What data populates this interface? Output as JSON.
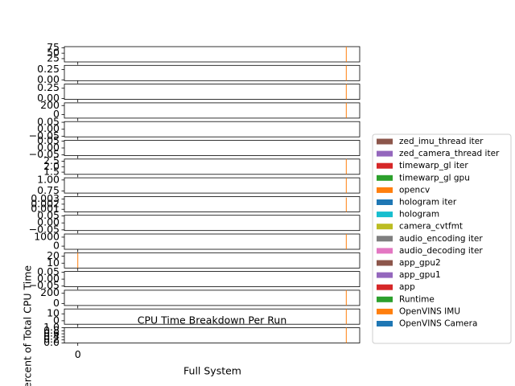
{
  "chart_data": [
    {
      "type": "bar",
      "x": [
        20
      ],
      "values": [
        80
      ],
      "color": "#ff7f0e",
      "ylim": [
        10,
        80
      ],
      "yticks": [
        25,
        50,
        75
      ]
    },
    {
      "type": "bar",
      "x": [
        20
      ],
      "values": [
        0.35
      ],
      "color": "#ff7f0e",
      "ylim": [
        -0.02,
        0.35
      ],
      "yticks": [
        {
          "value": 0,
          "label": "0.00"
        },
        0.25
      ]
    },
    {
      "type": "bar",
      "x": [
        20
      ],
      "values": [
        0.35
      ],
      "color": "#ff7f0e",
      "ylim": [
        -0.02,
        0.35
      ],
      "yticks": [
        {
          "value": 0,
          "label": "0.00"
        },
        0.25
      ]
    },
    {
      "type": "bar",
      "x": [
        20
      ],
      "values": [
        260
      ],
      "color": "#ff7f0e",
      "ylim": [
        -80,
        260
      ],
      "yticks": [
        0,
        200
      ]
    },
    {
      "type": "bar",
      "x": [],
      "values": [],
      "color": "#ff7f0e",
      "ylim": [
        -0.055,
        0.055
      ],
      "yticks": [
        {
          "value": -0.05,
          "label": "−0.05"
        },
        {
          "value": 0,
          "label": "0.00"
        },
        0.05
      ]
    },
    {
      "type": "bar",
      "x": [],
      "values": [],
      "color": "#ff7f0e",
      "ylim": [
        -0.055,
        0.055
      ],
      "yticks": [
        {
          "value": -0.05,
          "label": "−0.05"
        },
        {
          "value": 0,
          "label": "0.00"
        },
        0.05
      ]
    },
    {
      "type": "bar",
      "x": [
        20
      ],
      "values": [
        2.7
      ],
      "color": "#ff7f0e",
      "ylim": [
        1.3,
        2.7
      ],
      "yticks": [
        1.5,
        {
          "value": 2,
          "label": "2.0"
        },
        2.5
      ]
    },
    {
      "type": "bar",
      "x": [
        20
      ],
      "values": [
        1.05
      ],
      "color": "#ff7f0e",
      "ylim": [
        0.7,
        1.05
      ],
      "yticks": [
        0.75,
        {
          "value": 1,
          "label": "1.00"
        }
      ]
    },
    {
      "type": "bar",
      "x": [
        20
      ],
      "values": [
        0.0033
      ],
      "color": "#ff7f0e",
      "ylim": [
        0.0005,
        0.0035
      ],
      "yticks": [
        0.001,
        0.002,
        0.003
      ]
    },
    {
      "type": "bar",
      "x": [],
      "values": [],
      "color": "#ff7f0e",
      "ylim": [
        -0.055,
        0.055
      ],
      "yticks": [
        {
          "value": -0.05,
          "label": "−0.05"
        },
        {
          "value": 0,
          "label": "0.00"
        },
        0.05
      ]
    },
    {
      "type": "bar",
      "x": [
        20
      ],
      "values": [
        1350
      ],
      "color": "#ff7f0e",
      "ylim": [
        -350,
        1350
      ],
      "yticks": [
        0,
        1000
      ]
    },
    {
      "type": "bar",
      "x": [
        0
      ],
      "values": [
        25
      ],
      "color": "#ff7f0e",
      "ylim": [
        3,
        25
      ],
      "yticks": [
        10,
        20
      ]
    },
    {
      "type": "bar",
      "x": [],
      "values": [],
      "color": "#ff7f0e",
      "ylim": [
        -0.055,
        0.055
      ],
      "yticks": [
        {
          "value": -0.05,
          "label": "−0.05"
        },
        {
          "value": 0,
          "label": "0.00"
        },
        0.05
      ]
    },
    {
      "type": "bar",
      "x": [
        20
      ],
      "values": [
        260
      ],
      "color": "#ff7f0e",
      "ylim": [
        -40,
        260
      ],
      "yticks": [
        0,
        200
      ]
    },
    {
      "type": "bar",
      "title": "CPU Time Breakdown Per Run",
      "x": [
        20
      ],
      "values": [
        17
      ],
      "color": "#ff7f0e",
      "ylim": [
        -5,
        17
      ],
      "yticks": [
        0,
        10
      ]
    },
    {
      "type": "bar",
      "x": [
        20
      ],
      "values": [
        1
      ],
      "color": "#ff7f0e",
      "ylim": [
        0,
        1
      ],
      "yticks": [
        {
          "value": 0,
          "label": "0.0"
        },
        0.2,
        0.4,
        0.6,
        0.8,
        {
          "value": 1,
          "label": "1.0"
        }
      ]
    }
  ],
  "xlim": [
    -1,
    21
  ],
  "xticks": [
    0
  ],
  "xlabel": "Full System",
  "ylabel": "Percent of Total CPU Time",
  "legend": {
    "position": "right",
    "series": [
      {
        "name": "zed_imu_thread iter",
        "color": "#8c564b"
      },
      {
        "name": "zed_camera_thread iter",
        "color": "#9467bd"
      },
      {
        "name": "timewarp_gl iter",
        "color": "#d62728"
      },
      {
        "name": "timewarp_gl gpu",
        "color": "#2ca02c"
      },
      {
        "name": "opencv",
        "color": "#ff7f0e"
      },
      {
        "name": "hologram iter",
        "color": "#1f77b4"
      },
      {
        "name": "hologram",
        "color": "#17becf"
      },
      {
        "name": "camera_cvtfmt",
        "color": "#bcbd22"
      },
      {
        "name": "audio_encoding iter",
        "color": "#7f7f7f"
      },
      {
        "name": "audio_decoding iter",
        "color": "#e377c2"
      },
      {
        "name": "app_gpu2",
        "color": "#8c564b"
      },
      {
        "name": "app_gpu1",
        "color": "#9467bd"
      },
      {
        "name": "app",
        "color": "#d62728"
      },
      {
        "name": "Runtime",
        "color": "#2ca02c"
      },
      {
        "name": "OpenVINS IMU",
        "color": "#ff7f0e"
      },
      {
        "name": "OpenVINS Camera",
        "color": "#1f77b4"
      }
    ]
  }
}
